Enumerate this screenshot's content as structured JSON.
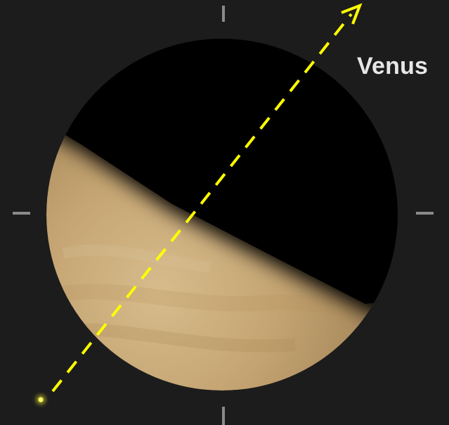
{
  "object": {
    "name": "Venus"
  },
  "colors": {
    "background": "#1c1c1c",
    "night_side": "#000000",
    "day_side_light": "#d6b98a",
    "day_side_dark": "#9c7e52",
    "sun_direction_arrow": "#ffff00",
    "sun_marker": "#ffff33",
    "ticks": "#8a8a8a",
    "label": "#e6e6e6"
  },
  "icons": {
    "sun_marker": "sun-dot-icon",
    "direction": "dashed-arrow-icon"
  }
}
